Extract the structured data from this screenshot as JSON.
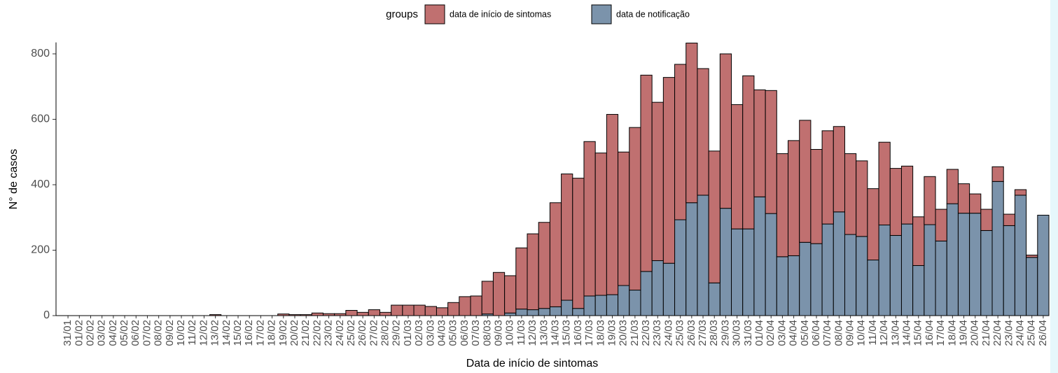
{
  "chart_data": {
    "type": "bar",
    "stacked": true,
    "x_label": "Data de início de sintomas",
    "y_label": "N° de casos",
    "legend_title": "groups",
    "categories": [
      "31/01",
      "01/02",
      "02/02",
      "03/02",
      "04/02",
      "05/02",
      "06/02",
      "07/02",
      "08/02",
      "09/02",
      "10/02",
      "11/02",
      "12/02",
      "13/02",
      "14/02",
      "15/02",
      "16/02",
      "17/02",
      "18/02",
      "19/02",
      "20/02",
      "21/02",
      "22/02",
      "23/02",
      "24/02",
      "25/02",
      "26/02",
      "27/02",
      "28/02",
      "29/02",
      "01/03",
      "02/03",
      "03/03",
      "04/03",
      "05/03",
      "06/03",
      "07/03",
      "08/03",
      "09/03",
      "10/03",
      "11/03",
      "12/03",
      "13/03",
      "14/03",
      "15/03",
      "16/03",
      "17/03",
      "18/03",
      "19/03",
      "20/03",
      "21/03",
      "22/03",
      "23/03",
      "24/03",
      "25/03",
      "26/03",
      "27/03",
      "28/03",
      "29/03",
      "30/03",
      "31/03",
      "01/04",
      "02/04",
      "03/04",
      "04/04",
      "05/04",
      "06/04",
      "07/04",
      "08/04",
      "09/04",
      "10/04",
      "11/04",
      "12/04",
      "13/04",
      "14/04",
      "15/04",
      "16/04",
      "17/04",
      "18/04",
      "19/04",
      "20/04",
      "21/04",
      "22/04",
      "23/04",
      "24/04",
      "25/04",
      "26/04"
    ],
    "series": [
      {
        "name": "data de notificação",
        "color": "#7b93ab",
        "values": [
          0,
          0,
          0,
          0,
          0,
          0,
          0,
          0,
          0,
          0,
          0,
          0,
          0,
          0,
          0,
          0,
          0,
          0,
          0,
          0,
          0,
          0,
          0,
          0,
          0,
          0,
          0,
          0,
          0,
          0,
          0,
          0,
          0,
          0,
          0,
          0,
          0,
          5,
          0,
          8,
          20,
          18,
          22,
          27,
          47,
          22,
          60,
          62,
          64,
          92,
          78,
          135,
          168,
          160,
          293,
          345,
          368,
          100,
          328,
          265,
          265,
          363,
          312,
          180,
          183,
          224,
          220,
          280,
          317,
          248,
          242,
          170,
          277,
          245,
          280,
          153,
          278,
          228,
          342,
          313,
          313,
          260,
          410,
          275,
          368,
          178,
          307
        ]
      },
      {
        "name": "data de início de sintomas",
        "color": "#c07070",
        "values": [
          0,
          0,
          0,
          0,
          0,
          0,
          0,
          0,
          0,
          0,
          0,
          0,
          0,
          3,
          0,
          0,
          0,
          0,
          0,
          5,
          3,
          3,
          8,
          6,
          6,
          16,
          10,
          18,
          10,
          32,
          32,
          32,
          28,
          24,
          40,
          58,
          60,
          100,
          132,
          114,
          187,
          232,
          263,
          318,
          386,
          398,
          472,
          435,
          551,
          408,
          497,
          600,
          484,
          568,
          475,
          488,
          387,
          403,
          472,
          380,
          468,
          327,
          376,
          315,
          352,
          373,
          288,
          285,
          261,
          247,
          231,
          218,
          253,
          205,
          177,
          149,
          147,
          97,
          105,
          90,
          59,
          65,
          45,
          35,
          17,
          7,
          0
        ]
      }
    ],
    "ylim": [
      0,
      835
    ],
    "yticks": [
      0,
      200,
      400,
      600,
      800
    ],
    "grid": false
  }
}
